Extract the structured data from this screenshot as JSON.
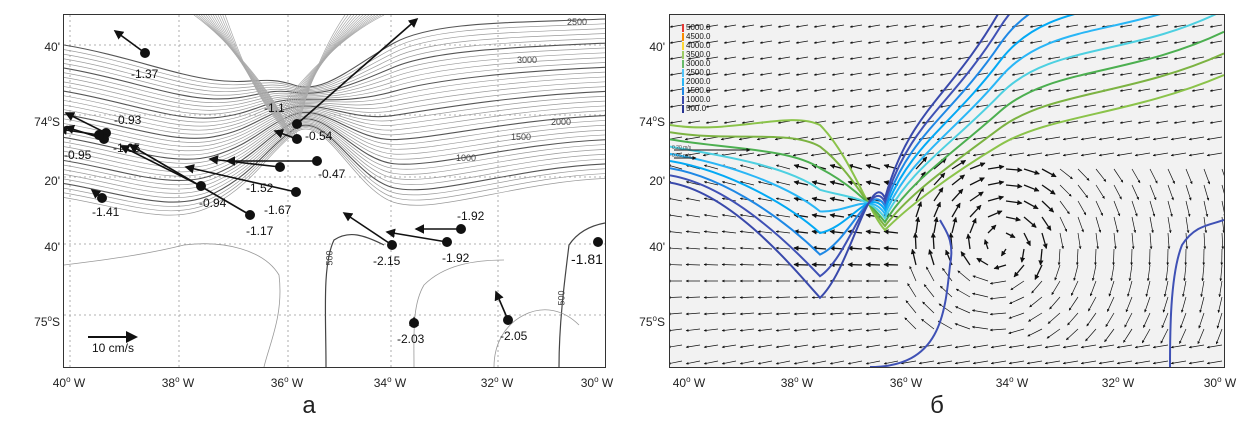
{
  "panel_a": {
    "caption": "а",
    "y_ticks": [
      {
        "label": "40'",
        "sup": ""
      },
      {
        "label": "74",
        "sup": "o",
        "suffix": "S"
      },
      {
        "label": "20'",
        "sup": ""
      },
      {
        "label": "40'",
        "sup": ""
      },
      {
        "label": "75",
        "sup": "o",
        "suffix": "S"
      }
    ],
    "x_ticks": [
      {
        "num": "40",
        "suffix": " W"
      },
      {
        "num": "38",
        "suffix": " W"
      },
      {
        "num": "36",
        "suffix": " W"
      },
      {
        "num": "34",
        "suffix": " W"
      },
      {
        "num": "32",
        "suffix": " W"
      },
      {
        "num": "30",
        "suffix": " W"
      }
    ],
    "contour_labels": [
      "2500",
      "3000",
      "2000",
      "1500",
      "1000",
      "500",
      "500"
    ],
    "scale_label": "10 cm/s",
    "moorings": [
      "-1.37",
      "-0.93",
      "-1.05",
      "-0.95",
      "-1.41",
      "-1.1",
      "-0.54",
      "-0.47",
      "-1.52",
      "-0.94",
      "-1.67",
      "-1.17",
      "-1.92",
      "-2.15",
      "-1.92",
      "-1.81",
      "-2.03",
      "-2.05"
    ]
  },
  "panel_b": {
    "caption": "б",
    "y_ticks": [
      {
        "label": "40'",
        "sup": ""
      },
      {
        "label": "74",
        "sup": "o",
        "suffix": "S"
      },
      {
        "label": "20'",
        "sup": ""
      },
      {
        "label": "40'",
        "sup": ""
      },
      {
        "label": "75",
        "sup": "o",
        "suffix": "S"
      }
    ],
    "x_ticks": [
      {
        "num": "40",
        "suffix": " W"
      },
      {
        "num": "38",
        "suffix": " W"
      },
      {
        "num": "36",
        "suffix": " W"
      },
      {
        "num": "34",
        "suffix": " W"
      },
      {
        "num": "32",
        "suffix": " W"
      },
      {
        "num": "30",
        "suffix": " W"
      }
    ],
    "legend": [
      {
        "label": "5000.0",
        "color": "#e53935"
      },
      {
        "label": "4500.0",
        "color": "#fb8c00"
      },
      {
        "label": "4000.0",
        "color": "#fdd835"
      },
      {
        "label": "3500.0",
        "color": "#9ccc65"
      },
      {
        "label": "3000.0",
        "color": "#66bb6a"
      },
      {
        "label": "2500.0",
        "color": "#4fc3f7"
      },
      {
        "label": "2000.0",
        "color": "#29b6f6"
      },
      {
        "label": "1500.0",
        "color": "#1e88e5"
      },
      {
        "label": "1000.0",
        "color": "#3949ab"
      },
      {
        "label": "500.0",
        "color": "#283593"
      }
    ],
    "ref_arrow_labels": [
      "0.20 m/s",
      "0.05 m/s"
    ],
    "contour_colors": [
      "#8bc34a",
      "#7cb342",
      "#4caf50",
      "#4dd0e1",
      "#29b6f6",
      "#03a9f4",
      "#1e88e5",
      "#3f51b5",
      "#3949ab"
    ]
  }
}
